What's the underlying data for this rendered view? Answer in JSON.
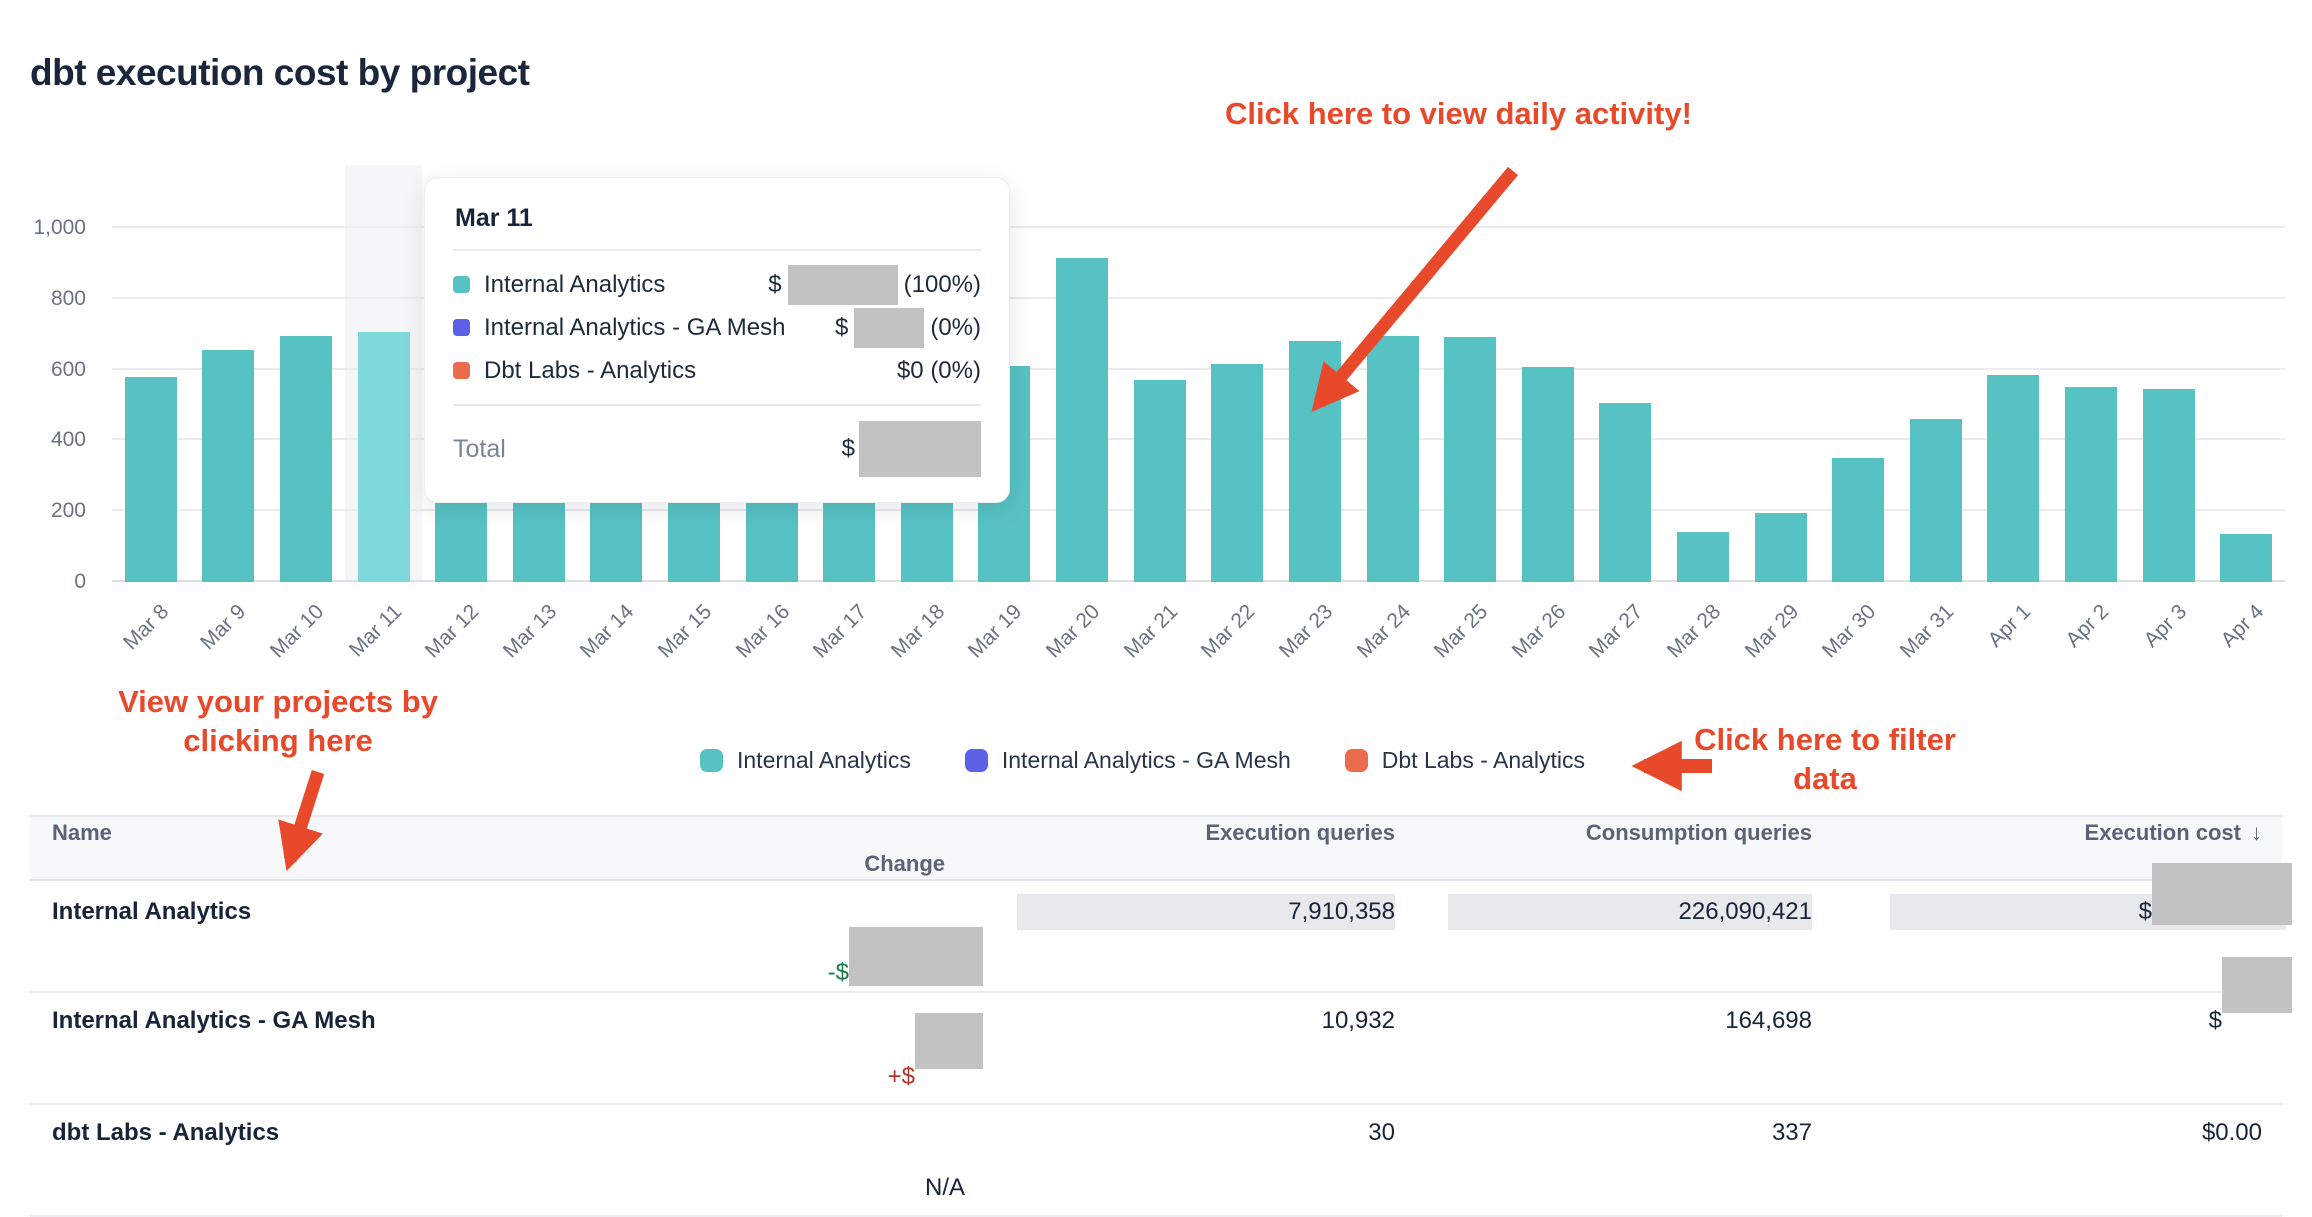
{
  "page_title": "dbt execution cost by project",
  "colors": {
    "teal": "#57C2C4",
    "teal_highlight": "#7FD8DA",
    "highlight_band": "#F4F6FA",
    "purple": "#5C60E6",
    "orange": "#EB6C4D",
    "annotation_red": "#E8492B",
    "change_negative_green": "#1E7A4A",
    "change_positive_red": "#B2352C",
    "redaction_gray": "#C2C2C2"
  },
  "chart_data": {
    "type": "bar",
    "title": "dbt execution cost by project",
    "x": [
      "Mar 8",
      "Mar 9",
      "Mar 10",
      "Mar 11",
      "Mar 12",
      "Mar 13",
      "Mar 14",
      "Mar 15",
      "Mar 16",
      "Mar 17",
      "Mar 18",
      "Mar 19",
      "Mar 20",
      "Mar 21",
      "Mar 22",
      "Mar 23",
      "Mar 24",
      "Mar 25",
      "Mar 26",
      "Mar 27",
      "Mar 28",
      "Mar 29",
      "Mar 30",
      "Mar 31",
      "Apr 1",
      "Apr 2",
      "Apr 3",
      "Apr 4"
    ],
    "series": [
      {
        "name": "Internal Analytics",
        "color": "#57C2C4",
        "values": [
          580,
          655,
          695,
          705,
          290,
          290,
          290,
          290,
          290,
          290,
          290,
          610,
          915,
          570,
          615,
          680,
          695,
          692,
          607,
          505,
          140,
          195,
          350,
          460,
          585,
          550,
          545,
          135
        ]
      },
      {
        "name": "Internal Analytics - GA Mesh",
        "color": "#5C60E6",
        "values": [
          0,
          0,
          0,
          0,
          0,
          0,
          0,
          0,
          0,
          0,
          0,
          0,
          0,
          0,
          0,
          0,
          0,
          0,
          0,
          0,
          0,
          0,
          0,
          0,
          0,
          0,
          0,
          0
        ]
      },
      {
        "name": "Dbt Labs - Analytics",
        "color": "#EB6C4D",
        "values": [
          0,
          0,
          0,
          0,
          0,
          0,
          0,
          0,
          0,
          0,
          0,
          0,
          0,
          0,
          0,
          0,
          0,
          0,
          0,
          0,
          0,
          0,
          0,
          0,
          0,
          0,
          0,
          0
        ]
      }
    ],
    "highlighted_bar": {
      "label": "Mar 11",
      "index": 3,
      "color": "#7FD8DA",
      "band_color": "#F4F6FA"
    },
    "ylim": [
      0,
      1000
    ],
    "yticks": [
      {
        "value": 1000,
        "label": "1,000"
      },
      {
        "value": 800,
        "label": "800"
      },
      {
        "value": 600,
        "label": "600"
      },
      {
        "value": 400,
        "label": "400"
      },
      {
        "value": 200,
        "label": "200"
      },
      {
        "value": 0,
        "label": "0"
      }
    ],
    "grid": "horizontal",
    "legend_position": "bottom"
  },
  "tooltip": {
    "date": "Mar 11",
    "rows": [
      {
        "name": "Internal Analytics",
        "swatch_color": "#57C2C4",
        "prefix": "$",
        "value_redacted": true,
        "suffix": "(100%)"
      },
      {
        "name": "Internal Analytics - GA Mesh",
        "swatch_color": "#5C60E6",
        "prefix": "$",
        "value_redacted": true,
        "suffix": "(0%)"
      },
      {
        "name": "Dbt Labs - Analytics",
        "swatch_color": "#EB6C4D",
        "value": "$0 (0%)",
        "value_redacted": false
      }
    ],
    "total_label": "Total",
    "total_prefix": "$",
    "total_redacted": true
  },
  "legend": {
    "items": [
      {
        "label": "Internal Analytics",
        "color": "#57C2C4"
      },
      {
        "label": "Internal Analytics - GA Mesh",
        "color": "#5C60E6"
      },
      {
        "label": "Dbt Labs - Analytics",
        "color": "#EB6C4D"
      }
    ]
  },
  "annotations": {
    "color": "#E8492B",
    "daily_activity": "Click here to view daily activity!",
    "view_projects": [
      "View your projects by",
      "clicking here"
    ],
    "filter_data": [
      "Click here to filter",
      "data"
    ]
  },
  "table": {
    "columns": [
      {
        "label": "Name"
      },
      {
        "label": "Execution queries"
      },
      {
        "label": "Consumption queries"
      },
      {
        "label": "Execution cost",
        "sorted": "desc",
        "sort_icon": "↓"
      },
      {
        "label": "Change"
      }
    ],
    "rows": [
      {
        "name": "Internal Analytics",
        "execution_queries": "7,910,358",
        "consumption_queries": "226,090,421",
        "execution_cost_prefix": "$",
        "execution_cost_redacted": true,
        "change_prefix": "-$",
        "change_redacted": true,
        "highlighted": true
      },
      {
        "name": "Internal Analytics - GA Mesh",
        "execution_queries": "10,932",
        "consumption_queries": "164,698",
        "execution_cost_prefix": "$",
        "execution_cost_redacted": true,
        "change_prefix": "+$",
        "change_redacted": true,
        "highlighted": false
      },
      {
        "name": "dbt Labs - Analytics",
        "execution_queries": "30",
        "consumption_queries": "337",
        "execution_cost": "$0.00",
        "change": "N/A",
        "highlighted": false
      }
    ]
  }
}
